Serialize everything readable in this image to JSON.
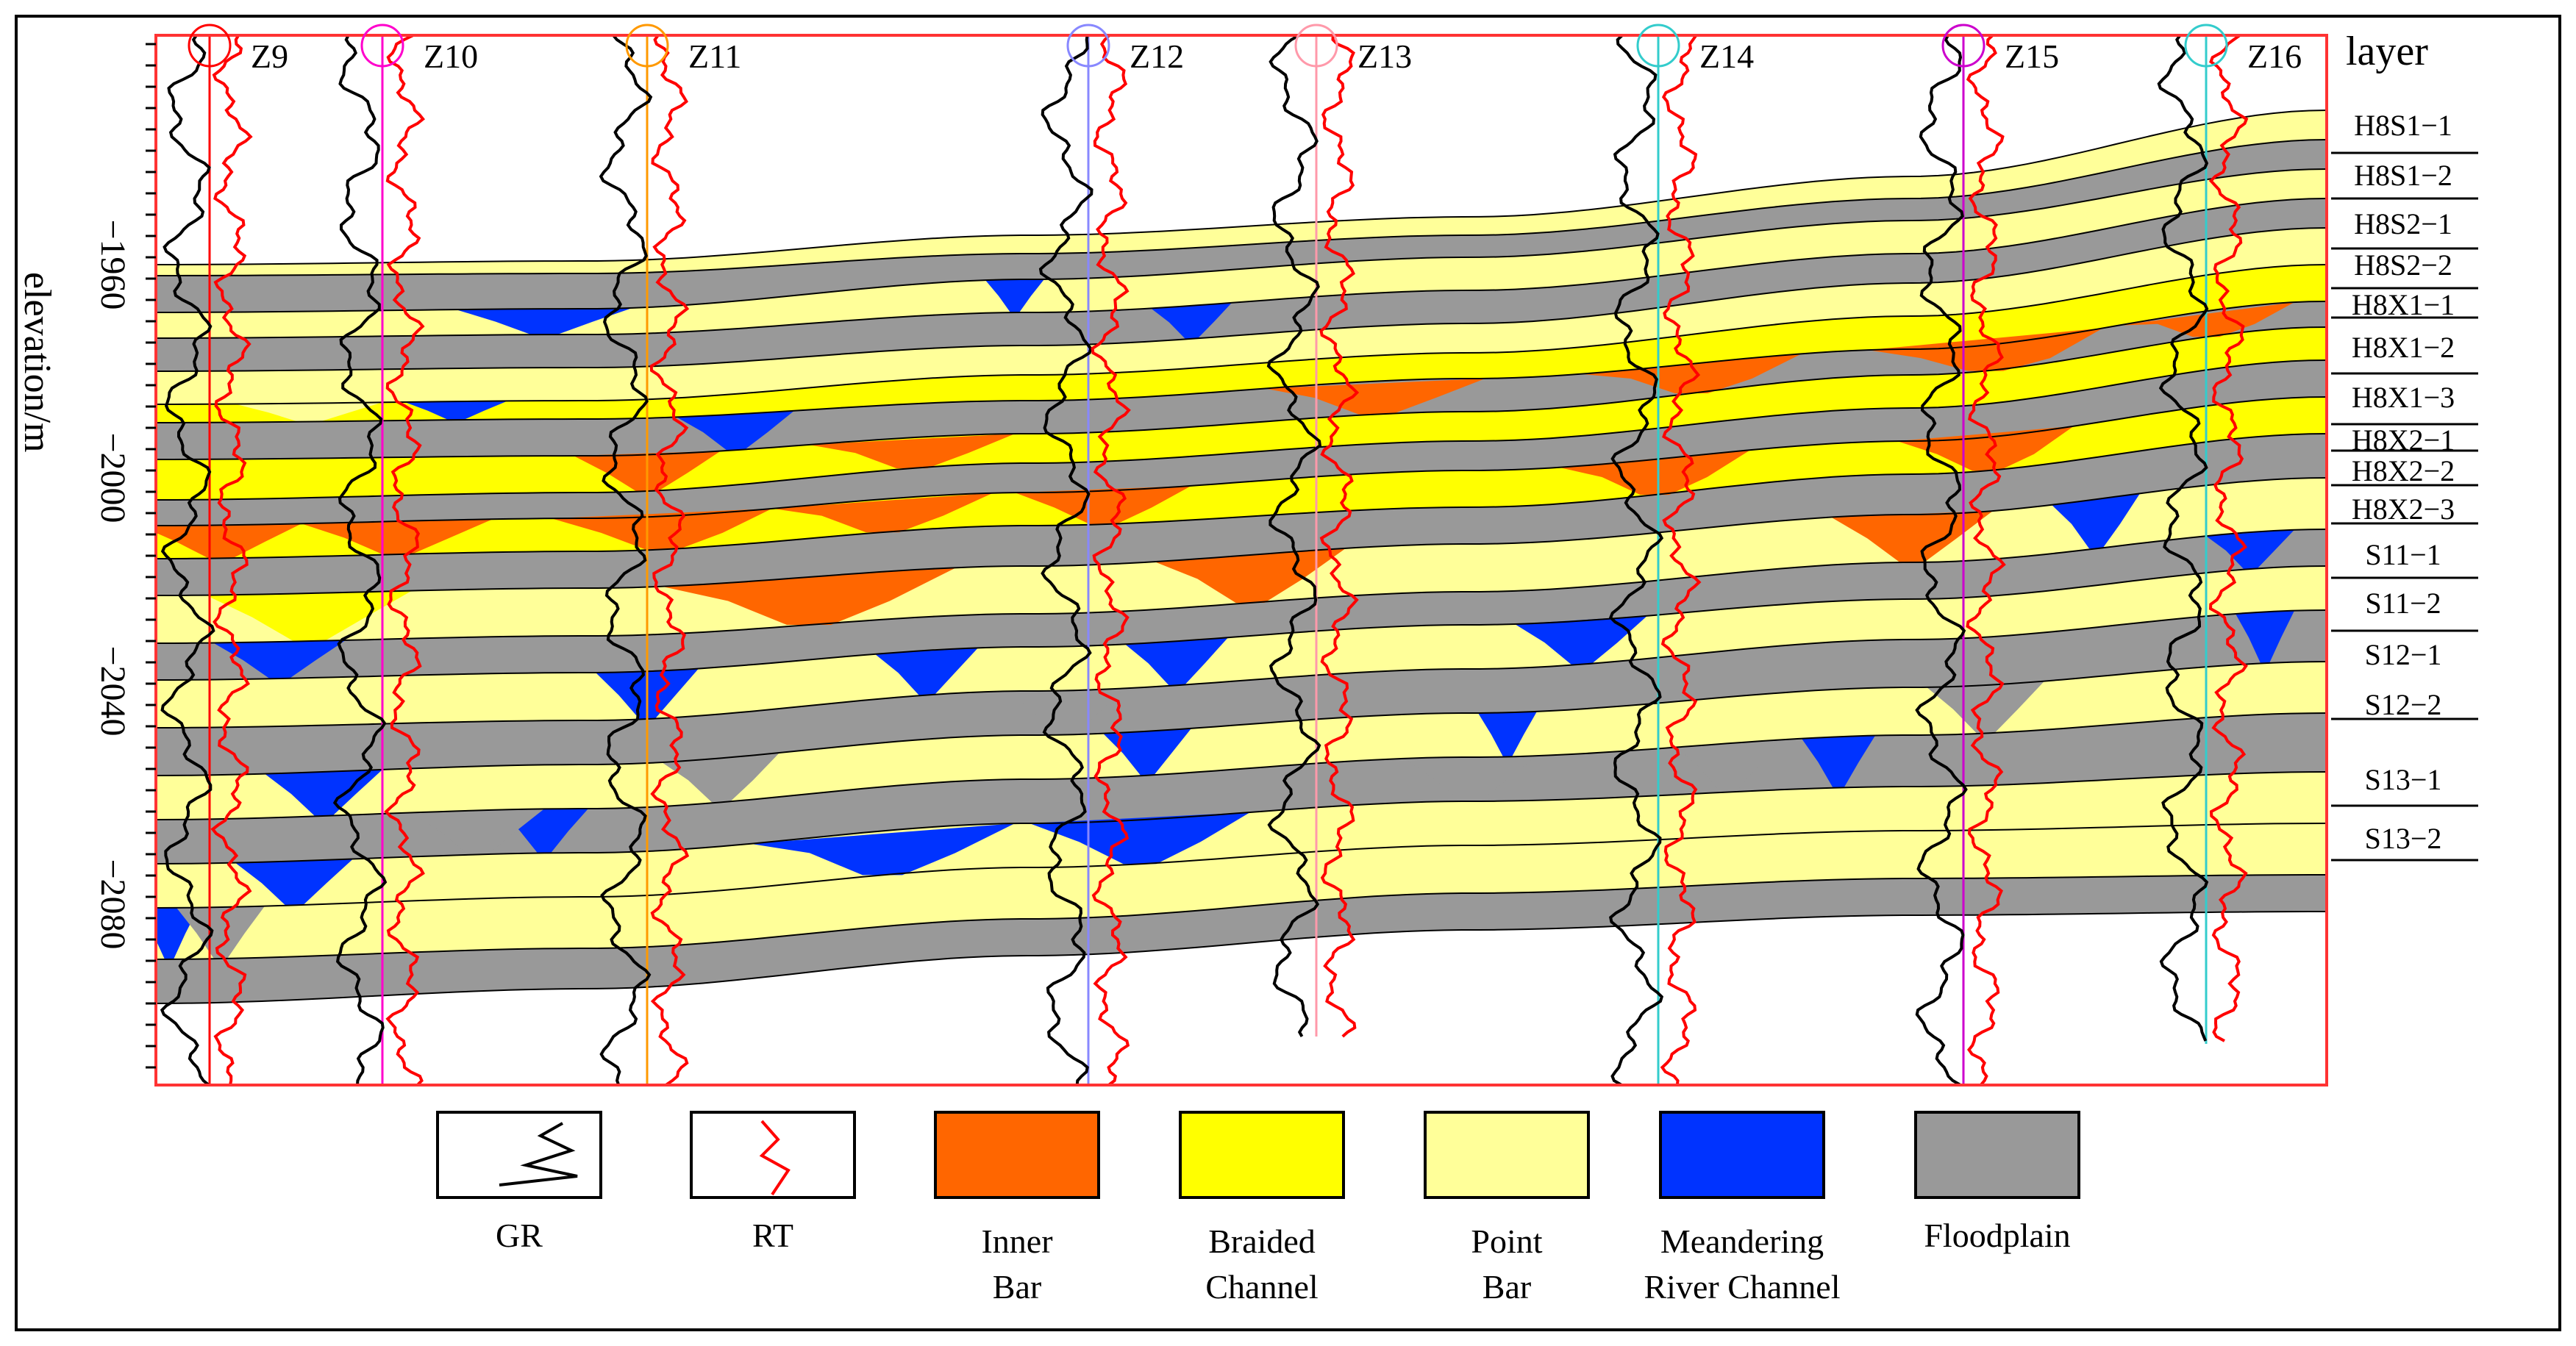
{
  "y_axis": {
    "label": "elevation/m",
    "ticks": [
      "-1960",
      "-2000",
      "-2040",
      "-2080"
    ]
  },
  "wells": [
    "Z9",
    "Z10",
    "Z11",
    "Z12",
    "Z13",
    "Z14",
    "Z15",
    "Z16"
  ],
  "layer_header": "layer",
  "layers": [
    "H8S1-1",
    "H8S1-2",
    "H8S2-1",
    "H8S2-2",
    "H8X1-1",
    "H8X1-2",
    "H8X1-3",
    "H8X2-1",
    "H8X2-2",
    "H8X2-3",
    "S11-1",
    "S11-2",
    "S12-1",
    "S12-2",
    "S13-1",
    "S13-2"
  ],
  "legend": [
    {
      "key": "gr",
      "lines": [
        "GR"
      ],
      "color": "#000000"
    },
    {
      "key": "rt",
      "lines": [
        "RT"
      ],
      "color": "#ff0000"
    },
    {
      "key": "inner_bar",
      "lines": [
        "Inner",
        "Bar"
      ],
      "color": "#ff6600"
    },
    {
      "key": "braided_channel",
      "lines": [
        "Braided",
        "Channel"
      ],
      "color": "#ffff00"
    },
    {
      "key": "point_bar",
      "lines": [
        "Point",
        "Bar"
      ],
      "color": "#ffff99"
    },
    {
      "key": "meandering",
      "lines": [
        "Meandering",
        "River Channel"
      ],
      "color": "#0033ff"
    },
    {
      "key": "floodplain",
      "lines": [
        "Floodplain"
      ],
      "color": "#999999"
    }
  ]
}
